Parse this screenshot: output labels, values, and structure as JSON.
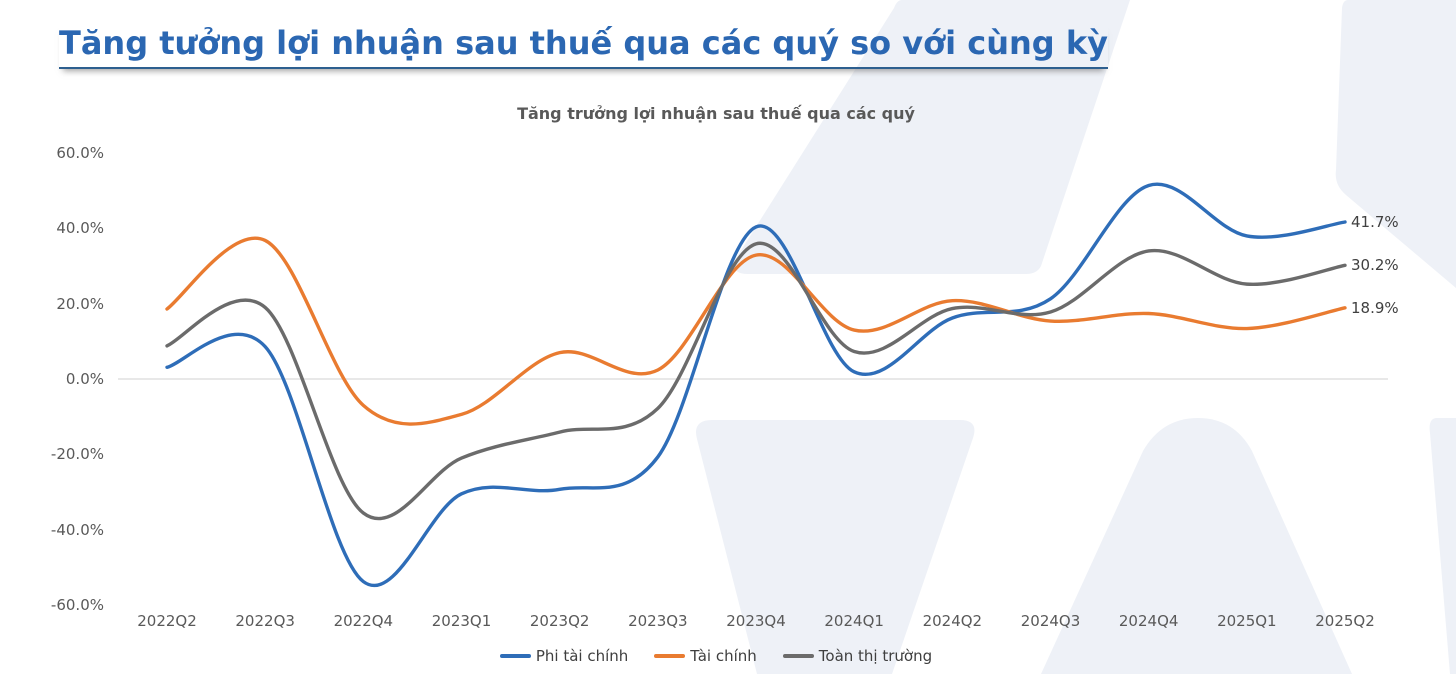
{
  "page_title": "Tăng tưởng lợi nhuận sau thuế qua các quý so với cùng kỳ",
  "chart_data": {
    "type": "line",
    "title": "Tăng trưởng lợi nhuận sau thuế qua các quý",
    "categories": [
      "2022Q2",
      "2022Q3",
      "2022Q4",
      "2023Q1",
      "2023Q2",
      "2023Q3",
      "2023Q4",
      "2024Q1",
      "2024Q2",
      "2024Q3",
      "2024Q4",
      "2025Q1",
      "2025Q2"
    ],
    "series": [
      {
        "name": "Phi tài chính",
        "color": "#2e6db8",
        "end_label": "41.7%",
        "values": [
          3.1,
          8.6,
          -53.8,
          -30.5,
          -29.3,
          -20.7,
          40.4,
          1.9,
          16.2,
          21.3,
          51.4,
          38.0,
          41.7
        ]
      },
      {
        "name": "Tài chính",
        "color": "#e97b30",
        "end_label": "18.9%",
        "values": [
          18.6,
          36.8,
          -7.0,
          -9.4,
          7.0,
          2.4,
          32.9,
          13.0,
          20.8,
          15.4,
          17.4,
          13.4,
          18.9
        ]
      },
      {
        "name": "Toàn thị trường",
        "color": "#6b6b6b",
        "end_label": "30.2%",
        "values": [
          8.8,
          19.0,
          -35.6,
          -21.0,
          -14.1,
          -7.8,
          35.9,
          7.3,
          18.7,
          17.8,
          34.0,
          25.2,
          30.2
        ]
      }
    ],
    "y_ticks": [
      {
        "label": "60.0%",
        "value": 60
      },
      {
        "label": "40.0%",
        "value": 40
      },
      {
        "label": "20.0%",
        "value": 20
      },
      {
        "label": "0.0%",
        "value": 0
      },
      {
        "label": "-20.0%",
        "value": -20
      },
      {
        "label": "-40.0%",
        "value": -40
      },
      {
        "label": "-60.0%",
        "value": -60
      }
    ],
    "ylim": [
      -60,
      60
    ],
    "grid": "zero-line-only",
    "line_style": "smooth",
    "legend_position": "bottom-center"
  },
  "colors": {
    "title_blue": "#2b67b2",
    "subtitle_gray": "#595959",
    "axis_text": "#595959",
    "end_label_text": "#404040",
    "zero_gridline": "#d9d9d9",
    "watermark": "#eef1f7",
    "background": "#ffffff"
  }
}
